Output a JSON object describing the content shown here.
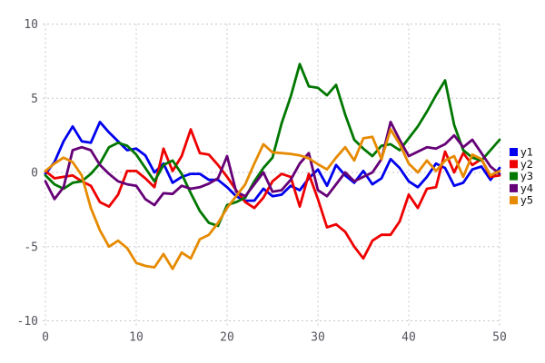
{
  "chart_data": {
    "type": "line",
    "title": "",
    "xlabel": "",
    "ylabel": "",
    "xlim": [
      0,
      50
    ],
    "ylim": [
      -10,
      10
    ],
    "x_ticks": [
      0,
      10,
      20,
      30,
      40,
      50
    ],
    "y_ticks": [
      -10,
      -5,
      0,
      5,
      10
    ],
    "grid": "dotted",
    "grid_color": "#c6c6d0",
    "tick_label_color": "#55555e",
    "background_color": "#ffffff",
    "legend_position": "right-outside",
    "x": [
      0,
      1,
      2,
      3,
      4,
      5,
      6,
      7,
      8,
      9,
      10,
      11,
      12,
      13,
      14,
      15,
      16,
      17,
      18,
      19,
      20,
      21,
      22,
      23,
      24,
      25,
      26,
      27,
      28,
      29,
      30,
      31,
      32,
      33,
      34,
      35,
      36,
      37,
      38,
      39,
      40,
      41,
      42,
      43,
      44,
      45,
      46,
      47,
      48,
      49,
      50
    ],
    "series": [
      {
        "name": "y1",
        "color": "#0000ee",
        "values": [
          -0.1,
          0.7,
          2.1,
          3.1,
          2.1,
          2.0,
          3.4,
          2.7,
          2.1,
          1.5,
          1.6,
          1.15,
          0.0,
          0.6,
          -0.7,
          -0.3,
          -0.1,
          -0.1,
          -0.5,
          -0.5,
          -1.0,
          -1.6,
          -1.9,
          -1.9,
          -1.1,
          -1.6,
          -1.5,
          -0.9,
          -1.2,
          -0.4,
          0.2,
          -0.9,
          0.5,
          -0.2,
          -0.7,
          0.1,
          -0.8,
          -0.4,
          0.9,
          0.3,
          -0.6,
          -1.0,
          -0.3,
          0.6,
          0.3,
          -0.9,
          -0.7,
          0.2,
          0.4,
          -0.5,
          0.3
        ]
      },
      {
        "name": "y2",
        "color": "#ee0000",
        "values": [
          0.1,
          -0.4,
          -0.3,
          -0.2,
          -0.6,
          -0.9,
          -2.0,
          -2.3,
          -1.5,
          0.1,
          0.1,
          -0.4,
          -1.0,
          1.6,
          0.1,
          1.1,
          2.9,
          1.3,
          1.2,
          0.5,
          -0.3,
          -1.2,
          -2.0,
          -2.4,
          -1.7,
          -0.6,
          -0.1,
          -0.3,
          -2.3,
          -0.1,
          -1.8,
          -3.7,
          -3.5,
          -4.0,
          -5.0,
          -5.8,
          -4.6,
          -4.2,
          -4.2,
          -3.3,
          -1.5,
          -2.4,
          -1.1,
          -1.0,
          1.4,
          0.0,
          1.3,
          0.5,
          0.9,
          -0.3,
          -0.2
        ]
      },
      {
        "name": "y3",
        "color": "#007700",
        "values": [
          -0.2,
          -0.8,
          -1.1,
          -0.7,
          -0.6,
          -0.1,
          0.6,
          1.7,
          2.0,
          1.8,
          1.2,
          0.3,
          -0.6,
          0.5,
          0.8,
          -0.1,
          -1.4,
          -2.6,
          -3.4,
          -3.6,
          -2.2,
          -2.0,
          -1.7,
          -0.6,
          0.3,
          1.0,
          3.3,
          5.1,
          7.3,
          5.8,
          5.7,
          5.2,
          5.9,
          3.9,
          2.2,
          1.6,
          1.1,
          1.8,
          1.9,
          1.5,
          2.3,
          3.1,
          4.1,
          5.2,
          6.2,
          3.2,
          1.5,
          1.0,
          0.8,
          1.5,
          2.2
        ]
      },
      {
        "name": "y4",
        "color": "#660077",
        "values": [
          -0.6,
          -1.8,
          -1.0,
          1.5,
          1.7,
          1.5,
          0.5,
          -0.1,
          -0.6,
          -0.8,
          -0.9,
          -1.8,
          -2.2,
          -1.4,
          -1.45,
          -0.9,
          -1.1,
          -1.0,
          -0.75,
          -0.4,
          1.1,
          -1.3,
          -1.6,
          -0.8,
          0.0,
          -1.3,
          -1.2,
          -0.5,
          0.6,
          1.3,
          -1.2,
          -1.6,
          -0.8,
          0.0,
          -0.6,
          -0.3,
          0.0,
          0.9,
          3.4,
          2.2,
          1.1,
          1.4,
          1.7,
          1.6,
          1.9,
          2.5,
          1.7,
          2.2,
          1.3,
          0.4,
          -0.1
        ]
      },
      {
        "name": "y5",
        "color": "#e68a00",
        "values": [
          0.1,
          0.6,
          1.0,
          0.7,
          -0.2,
          -2.4,
          -3.9,
          -5.0,
          -4.6,
          -5.1,
          -6.1,
          -6.3,
          -6.4,
          -5.5,
          -6.5,
          -5.4,
          -5.8,
          -4.5,
          -4.2,
          -3.4,
          -2.4,
          -1.6,
          -0.8,
          0.6,
          1.9,
          1.35,
          1.3,
          1.25,
          1.15,
          0.95,
          0.55,
          0.2,
          1.0,
          1.7,
          0.8,
          2.3,
          2.4,
          0.9,
          2.9,
          1.9,
          0.6,
          0.0,
          0.8,
          0.1,
          0.8,
          1.1,
          -0.3,
          1.2,
          0.9,
          -0.2,
          0.1
        ]
      }
    ],
    "legend_labels": [
      "y1",
      "y2",
      "y3",
      "y4",
      "y5"
    ]
  },
  "plot": {
    "x_tick_labels": [
      "0",
      "10",
      "20",
      "30",
      "40",
      "50"
    ],
    "y_tick_labels": [
      "-10",
      "-5",
      "0",
      "5",
      "10"
    ]
  }
}
